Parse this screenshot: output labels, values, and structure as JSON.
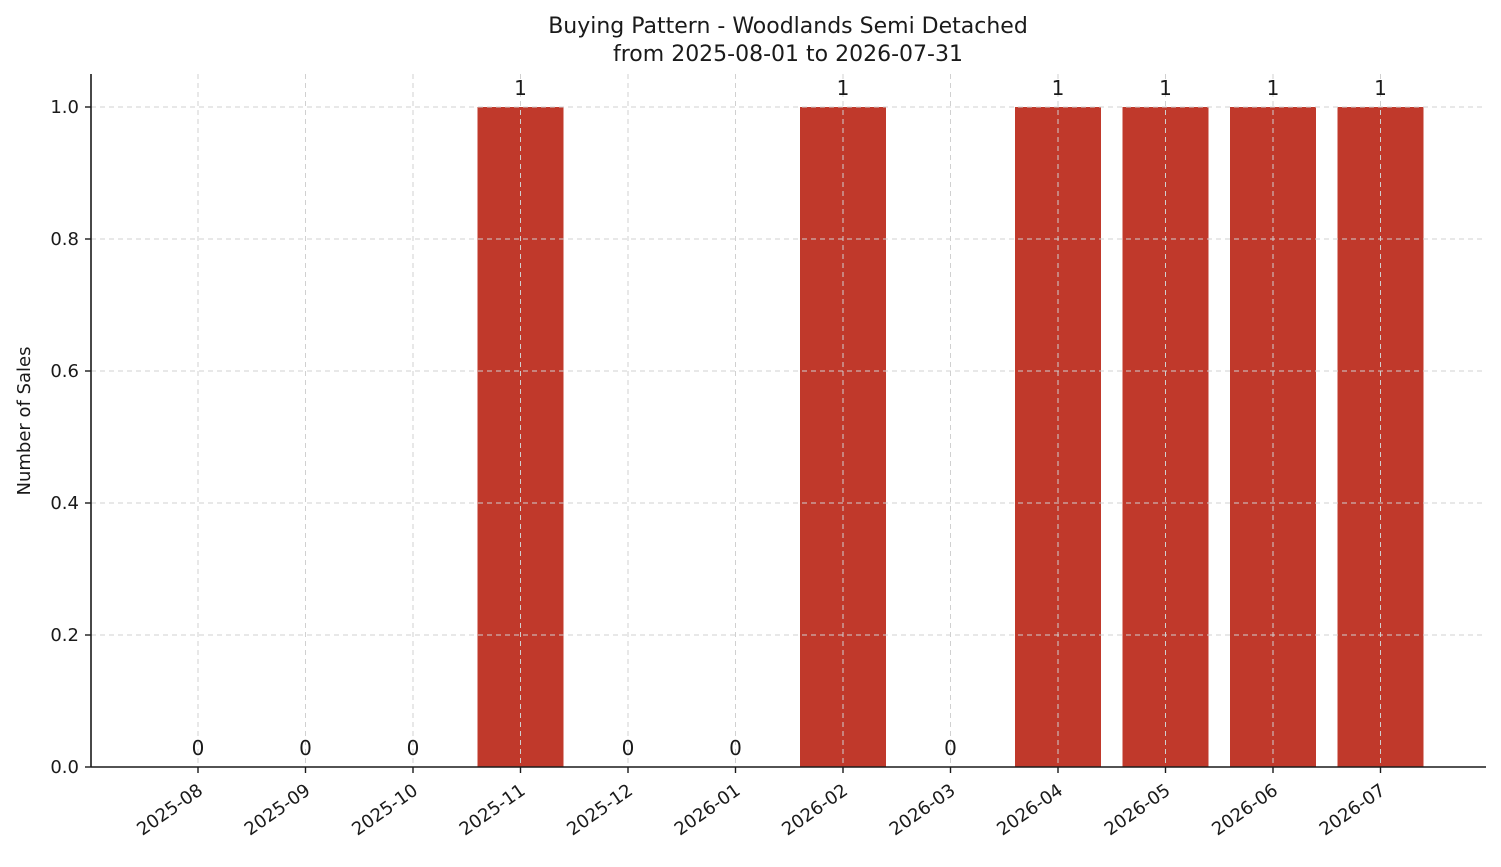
{
  "chart_data": {
    "type": "bar",
    "title": "Buying Pattern - Woodlands Semi Detached",
    "subtitle": "from 2025-08-01 to 2026-07-31",
    "xlabel": "",
    "ylabel": "Number of Sales",
    "categories": [
      "2025-08",
      "2025-09",
      "2025-10",
      "2025-11",
      "2025-12",
      "2026-01",
      "2026-02",
      "2026-03",
      "2026-04",
      "2026-05",
      "2026-06",
      "2026-07"
    ],
    "values": [
      0,
      0,
      0,
      1,
      0,
      0,
      1,
      0,
      1,
      1,
      1,
      1
    ],
    "data_labels": [
      "0",
      "0",
      "0",
      "1",
      "0",
      "0",
      "1",
      "0",
      "1",
      "1",
      "1",
      "1"
    ],
    "ylim": [
      0,
      1.05
    ],
    "yticks": [
      0.0,
      0.2,
      0.4,
      0.6,
      0.8,
      1.0
    ],
    "ytick_labels": [
      "0.0",
      "0.2",
      "0.4",
      "0.6",
      "0.8",
      "1.0"
    ],
    "grid": true,
    "bar_color": "#c0392b",
    "legend": "none"
  }
}
